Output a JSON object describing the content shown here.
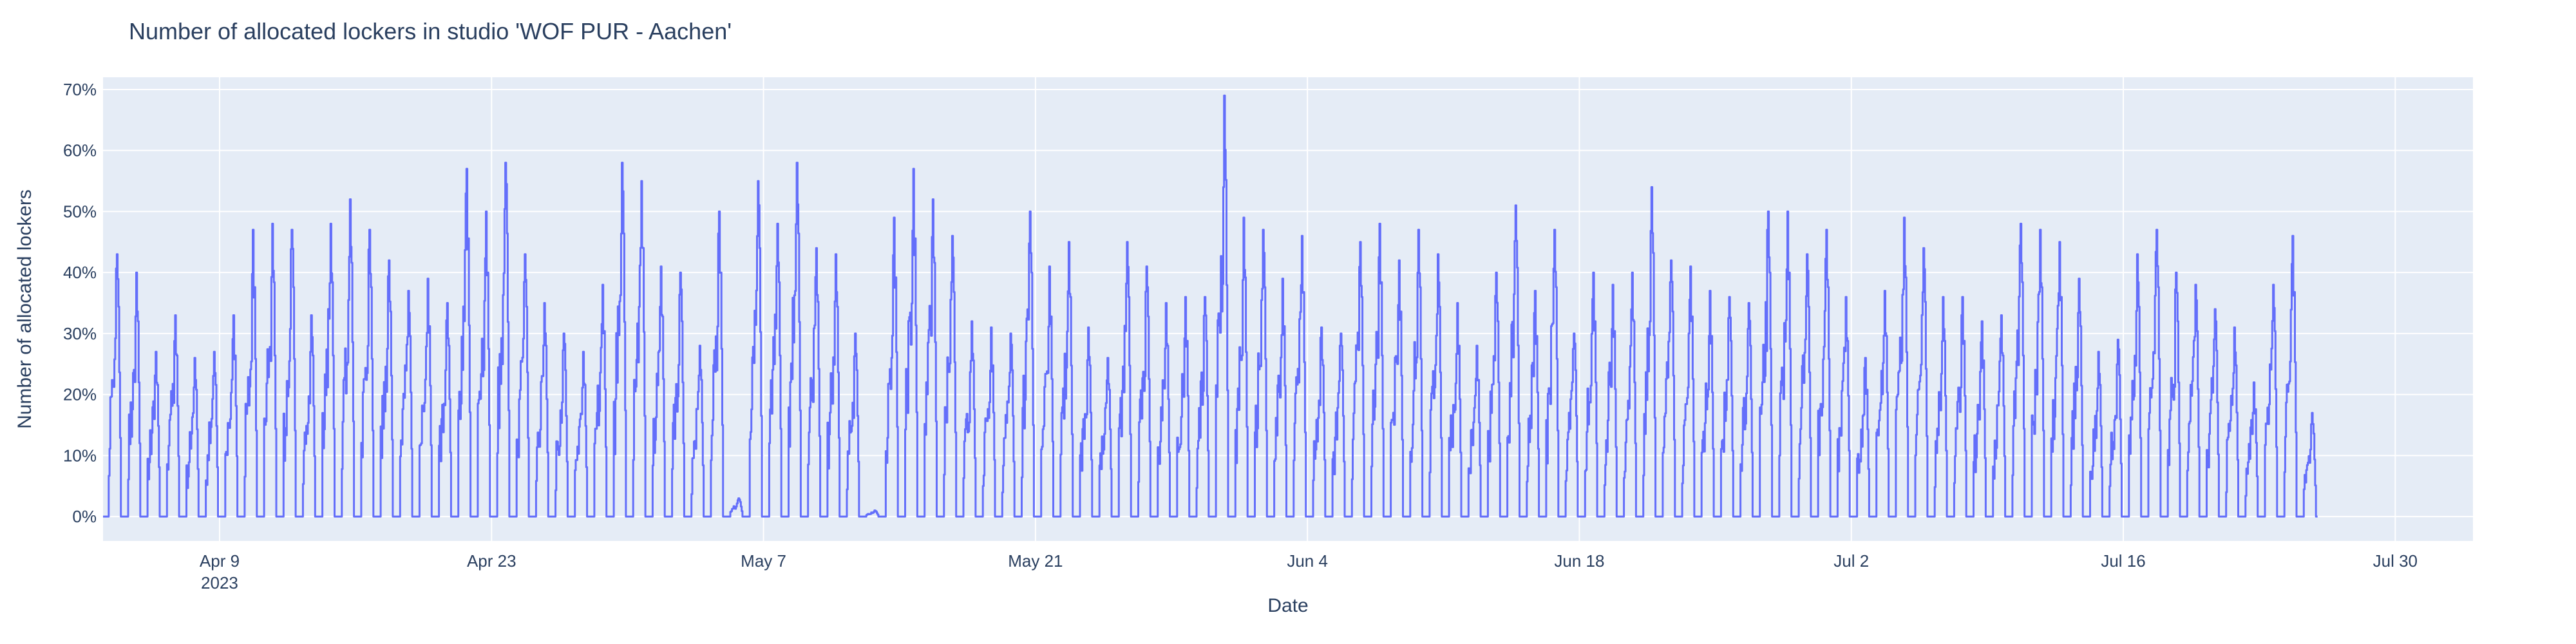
{
  "chart_data": {
    "type": "line",
    "title": "Number of allocated lockers in studio 'WOF PUR - Aachen'",
    "xlabel": "Date",
    "ylabel": "Number of allocated lockers",
    "xlim": [
      "2023-04-03",
      "2023-08-03"
    ],
    "ylim": [
      -0.04,
      0.72
    ],
    "y_ticks": [
      0,
      0.1,
      0.2,
      0.3,
      0.4,
      0.5,
      0.6,
      0.7
    ],
    "y_tick_labels": [
      "0%",
      "10%",
      "20%",
      "30%",
      "40%",
      "50%",
      "60%",
      "70%"
    ],
    "x_ticks": [
      "2023-04-09",
      "2023-04-23",
      "2023-05-07",
      "2023-05-21",
      "2023-06-04",
      "2023-06-18",
      "2023-07-02",
      "2023-07-16",
      "2023-07-30"
    ],
    "x_tick_labels": [
      "Apr 9",
      "Apr 23",
      "May 7",
      "May 21",
      "Jun 4",
      "Jun 18",
      "Jul 2",
      "Jul 16",
      "Jul 30"
    ],
    "x_tick_year": "2023",
    "grid": true,
    "series": [
      {
        "color": "#636efa",
        "daily_peak": [
          0.43,
          0.4,
          0.27,
          0.33,
          0.26,
          0.27,
          0.33,
          0.47,
          0.48,
          0.47,
          0.33,
          0.48,
          0.52,
          0.47,
          0.42,
          0.37,
          0.39,
          0.35,
          0.57,
          0.5,
          0.58,
          0.43,
          0.35,
          0.3,
          0.27,
          0.38,
          0.58,
          0.55,
          0.41,
          0.4,
          0.28,
          0.5,
          0.03,
          0.55,
          0.48,
          0.58,
          0.44,
          0.43,
          0.3,
          0.01,
          0.49,
          0.57,
          0.52,
          0.46,
          0.32,
          0.31,
          0.3,
          0.5,
          0.41,
          0.45,
          0.31,
          0.26,
          0.45,
          0.41,
          0.35,
          0.36,
          0.36,
          0.69,
          0.49,
          0.47,
          0.39,
          0.46,
          0.31,
          0.3,
          0.45,
          0.48,
          0.42,
          0.47,
          0.43,
          0.35,
          0.28,
          0.4,
          0.51,
          0.37,
          0.47,
          0.3,
          0.4,
          0.38,
          0.4,
          0.54,
          0.42,
          0.41,
          0.37,
          0.36,
          0.35,
          0.5,
          0.5,
          0.43,
          0.47,
          0.36,
          0.26,
          0.37,
          0.49,
          0.44,
          0.36,
          0.36,
          0.32,
          0.33,
          0.48,
          0.47,
          0.45,
          0.39,
          0.27,
          0.29,
          0.43,
          0.47,
          0.4,
          0.38,
          0.34,
          0.31,
          0.22,
          0.38,
          0.46,
          0.17
        ]
      }
    ]
  }
}
